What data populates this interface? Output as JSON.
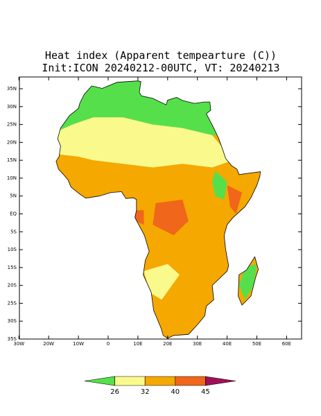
{
  "title": "Heat index (Apparent tempearture (C))",
  "subtitle": "Init:ICON 20240212-00UTC, VT: 20240213",
  "map": {
    "lat_ticks": [
      {
        "value": 35,
        "label": "35N"
      },
      {
        "value": 30,
        "label": "30N"
      },
      {
        "value": 25,
        "label": "25N"
      },
      {
        "value": 20,
        "label": "20N"
      },
      {
        "value": 15,
        "label": "15N"
      },
      {
        "value": 10,
        "label": "10N"
      },
      {
        "value": 5,
        "label": "5N"
      },
      {
        "value": 0,
        "label": "EQ"
      },
      {
        "value": -5,
        "label": "5S"
      },
      {
        "value": -10,
        "label": "10S"
      },
      {
        "value": -15,
        "label": "15S"
      },
      {
        "value": -20,
        "label": "20S"
      },
      {
        "value": -25,
        "label": "25S"
      },
      {
        "value": -30,
        "label": "30S"
      },
      {
        "value": -35,
        "label": "35S"
      }
    ],
    "lon_ticks": [
      {
        "value": -30,
        "label": "30W"
      },
      {
        "value": -20,
        "label": "20W"
      },
      {
        "value": -10,
        "label": "10W"
      },
      0,
      {
        "value": 10,
        "label": "10E"
      },
      {
        "value": 20,
        "label": "20E"
      },
      {
        "value": 30,
        "label": "30E"
      },
      {
        "value": 40,
        "label": "40E"
      },
      {
        "value": 50,
        "label": "50E"
      },
      {
        "value": 60,
        "label": "60E"
      }
    ]
  },
  "colorbar": {
    "colors": [
      "#55e04b",
      "#fafa8c",
      "#f5a800",
      "#f0661a",
      "#a0105a"
    ],
    "levels": [
      26,
      32,
      40,
      45
    ]
  }
}
